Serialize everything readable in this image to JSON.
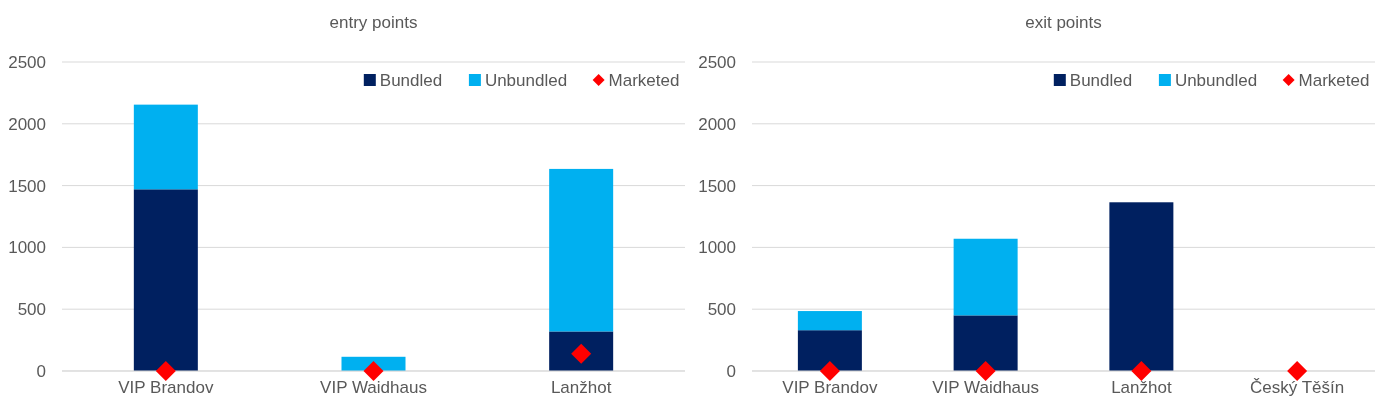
{
  "chart_data": [
    {
      "type": "bar",
      "title": "entry points",
      "stacked": true,
      "categories": [
        "VIP Brandov",
        "VIP Waidhaus",
        "Lanžhot"
      ],
      "ylim": [
        0,
        2500
      ],
      "yticks": [
        0,
        500,
        1000,
        1500,
        2000,
        2500
      ],
      "grid": "y",
      "legend": "top right",
      "marker": "diamond",
      "series": [
        {
          "name": "Bundled",
          "color": "#002060",
          "values": [
            1470,
            0,
            320
          ]
        },
        {
          "name": "Unbundled",
          "color": "#00b0f0",
          "values": [
            685,
            115,
            1315
          ]
        },
        {
          "name": "Marketed",
          "type": "scatter",
          "color": "#ff0000",
          "values": [
            0,
            0,
            140
          ]
        }
      ]
    },
    {
      "type": "bar",
      "title": "exit points",
      "stacked": true,
      "categories": [
        "VIP Brandov",
        "VIP Waidhaus",
        "Lanžhot",
        "Český Těšín"
      ],
      "ylim": [
        0,
        2500
      ],
      "yticks": [
        0,
        500,
        1000,
        1500,
        2000,
        2500
      ],
      "grid": "y",
      "legend": "top right",
      "marker": "diamond",
      "series": [
        {
          "name": "Bundled",
          "color": "#002060",
          "values": [
            330,
            450,
            1365,
            0
          ]
        },
        {
          "name": "Unbundled",
          "color": "#00b0f0",
          "values": [
            155,
            620,
            0,
            0
          ]
        },
        {
          "name": "Marketed",
          "type": "scatter",
          "color": "#ff0000",
          "values": [
            0,
            0,
            0,
            0
          ]
        }
      ]
    }
  ]
}
